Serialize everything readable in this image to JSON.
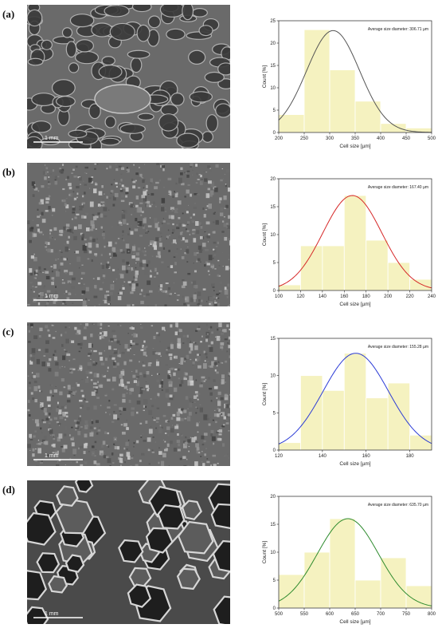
{
  "panels": [
    {
      "label": "(a)",
      "scale_bar": "1 mm",
      "sem_texture": "large",
      "chart_data": {
        "type": "bar",
        "xlabel": "Cell size [µm]",
        "ylabel": "Count [%]",
        "annotation": "Average size diameter: 306.71 µm",
        "xlim": [
          200,
          500
        ],
        "ylim": [
          0,
          25
        ],
        "xticks": [
          200,
          250,
          300,
          350,
          400,
          450,
          500
        ],
        "yticks": [
          0,
          5,
          10,
          15,
          20,
          25
        ],
        "bins": [
          [
            200,
            250
          ],
          [
            250,
            300
          ],
          [
            300,
            350
          ],
          [
            350,
            400
          ],
          [
            400,
            450
          ],
          [
            450,
            500
          ]
        ],
        "values": [
          4,
          23,
          14,
          7,
          2,
          1
        ],
        "fit": {
          "mean": 306.71,
          "sd": 52,
          "peak": 22.8
        },
        "fit_color": "#555555",
        "bar_color": "#f5f2c0",
        "grid": false
      }
    },
    {
      "label": "(b)",
      "scale_bar": "1 mm",
      "sem_texture": "fine",
      "chart_data": {
        "type": "bar",
        "xlabel": "Cell size [µm]",
        "ylabel": "Count [%]",
        "annotation": "Average size diameter: 167.40 µm",
        "xlim": [
          100,
          240
        ],
        "ylim": [
          0,
          20
        ],
        "xticks": [
          100,
          120,
          140,
          160,
          180,
          200,
          220,
          240
        ],
        "yticks": [
          0,
          5,
          10,
          15,
          20
        ],
        "bins": [
          [
            100,
            120
          ],
          [
            120,
            140
          ],
          [
            140,
            160
          ],
          [
            160,
            180
          ],
          [
            180,
            200
          ],
          [
            200,
            220
          ],
          [
            220,
            240
          ]
        ],
        "values": [
          1,
          8,
          8,
          17,
          9,
          5,
          2
        ],
        "fit": {
          "mean": 167.4,
          "sd": 27,
          "peak": 17
        },
        "fit_color": "#d62828",
        "bar_color": "#f5f2c0",
        "grid": false
      }
    },
    {
      "label": "(c)",
      "scale_bar": "1 mm",
      "sem_texture": "fine",
      "chart_data": {
        "type": "bar",
        "xlabel": "Cell size [µm]",
        "ylabel": "Count [%]",
        "annotation": "Average size diameter: 155.28 µm",
        "xlim": [
          120,
          190
        ],
        "ylim": [
          0,
          15
        ],
        "xticks": [
          120,
          140,
          160,
          180
        ],
        "yticks": [
          0,
          5,
          10,
          15
        ],
        "bins": [
          [
            120,
            130
          ],
          [
            130,
            140
          ],
          [
            140,
            150
          ],
          [
            150,
            160
          ],
          [
            160,
            170
          ],
          [
            170,
            180
          ],
          [
            180,
            190
          ]
        ],
        "values": [
          1,
          10,
          8,
          13,
          7,
          9,
          2
        ],
        "fit": {
          "mean": 155.28,
          "sd": 15,
          "peak": 13
        },
        "fit_color": "#2b3bd6",
        "bar_color": "#f5f2c0",
        "grid": false
      }
    },
    {
      "label": "(d)",
      "scale_bar": "1 mm",
      "sem_texture": "honeycomb",
      "chart_data": {
        "type": "bar",
        "xlabel": "Cell size [µm]",
        "ylabel": "Count [%]",
        "annotation": "Average size diameter: 635.70 µm",
        "xlim": [
          500,
          800
        ],
        "ylim": [
          0,
          20
        ],
        "xticks": [
          500,
          550,
          600,
          650,
          700,
          750,
          800
        ],
        "yticks": [
          0,
          5,
          10,
          15,
          20
        ],
        "bins": [
          [
            500,
            550
          ],
          [
            550,
            600
          ],
          [
            600,
            650
          ],
          [
            650,
            700
          ],
          [
            700,
            750
          ],
          [
            750,
            800
          ]
        ],
        "values": [
          6,
          10,
          16,
          5,
          9,
          4
        ],
        "fit": {
          "mean": 635.7,
          "sd": 60,
          "peak": 16
        },
        "fit_color": "#2e8b2e",
        "bar_color": "#f5f2c0",
        "grid": false
      }
    }
  ]
}
